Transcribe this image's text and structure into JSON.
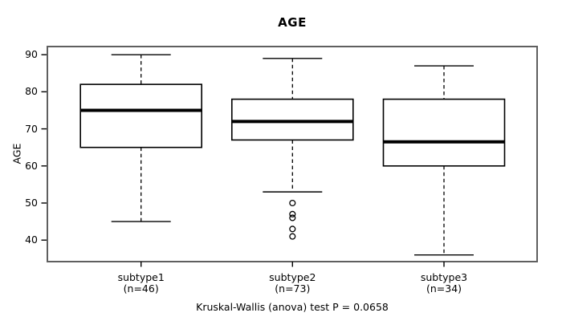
{
  "colors": {
    "ink": "#000000",
    "frame": "#5f5f5f",
    "background": "#ffffff"
  },
  "chart_data": {
    "type": "boxplot",
    "title": "AGE",
    "ylabel": "AGE",
    "xlabel": "",
    "caption": "Kruskal-Wallis (anova) test P = 0.0658",
    "p_value": "0.0658",
    "ylim": [
      34.2,
      92.2
    ],
    "yticks": [
      40,
      50,
      60,
      70,
      80,
      90
    ],
    "grid": false,
    "groups": [
      {
        "label": "subtype1",
        "sublabel": "(n=46)",
        "n": 46,
        "whisker_low": 45,
        "q1": 65,
        "median": 75,
        "q3": 82,
        "whisker_high": 90,
        "outliers": []
      },
      {
        "label": "subtype2",
        "sublabel": "(n=73)",
        "n": 73,
        "whisker_low": 53,
        "q1": 67,
        "median": 72,
        "q3": 78,
        "whisker_high": 89,
        "outliers": [
          50,
          47,
          46,
          43,
          41
        ]
      },
      {
        "label": "subtype3",
        "sublabel": "(n=34)",
        "n": 34,
        "whisker_low": 36,
        "q1": 60,
        "median": 66.5,
        "q3": 78,
        "whisker_high": 87,
        "outliers": []
      }
    ]
  }
}
